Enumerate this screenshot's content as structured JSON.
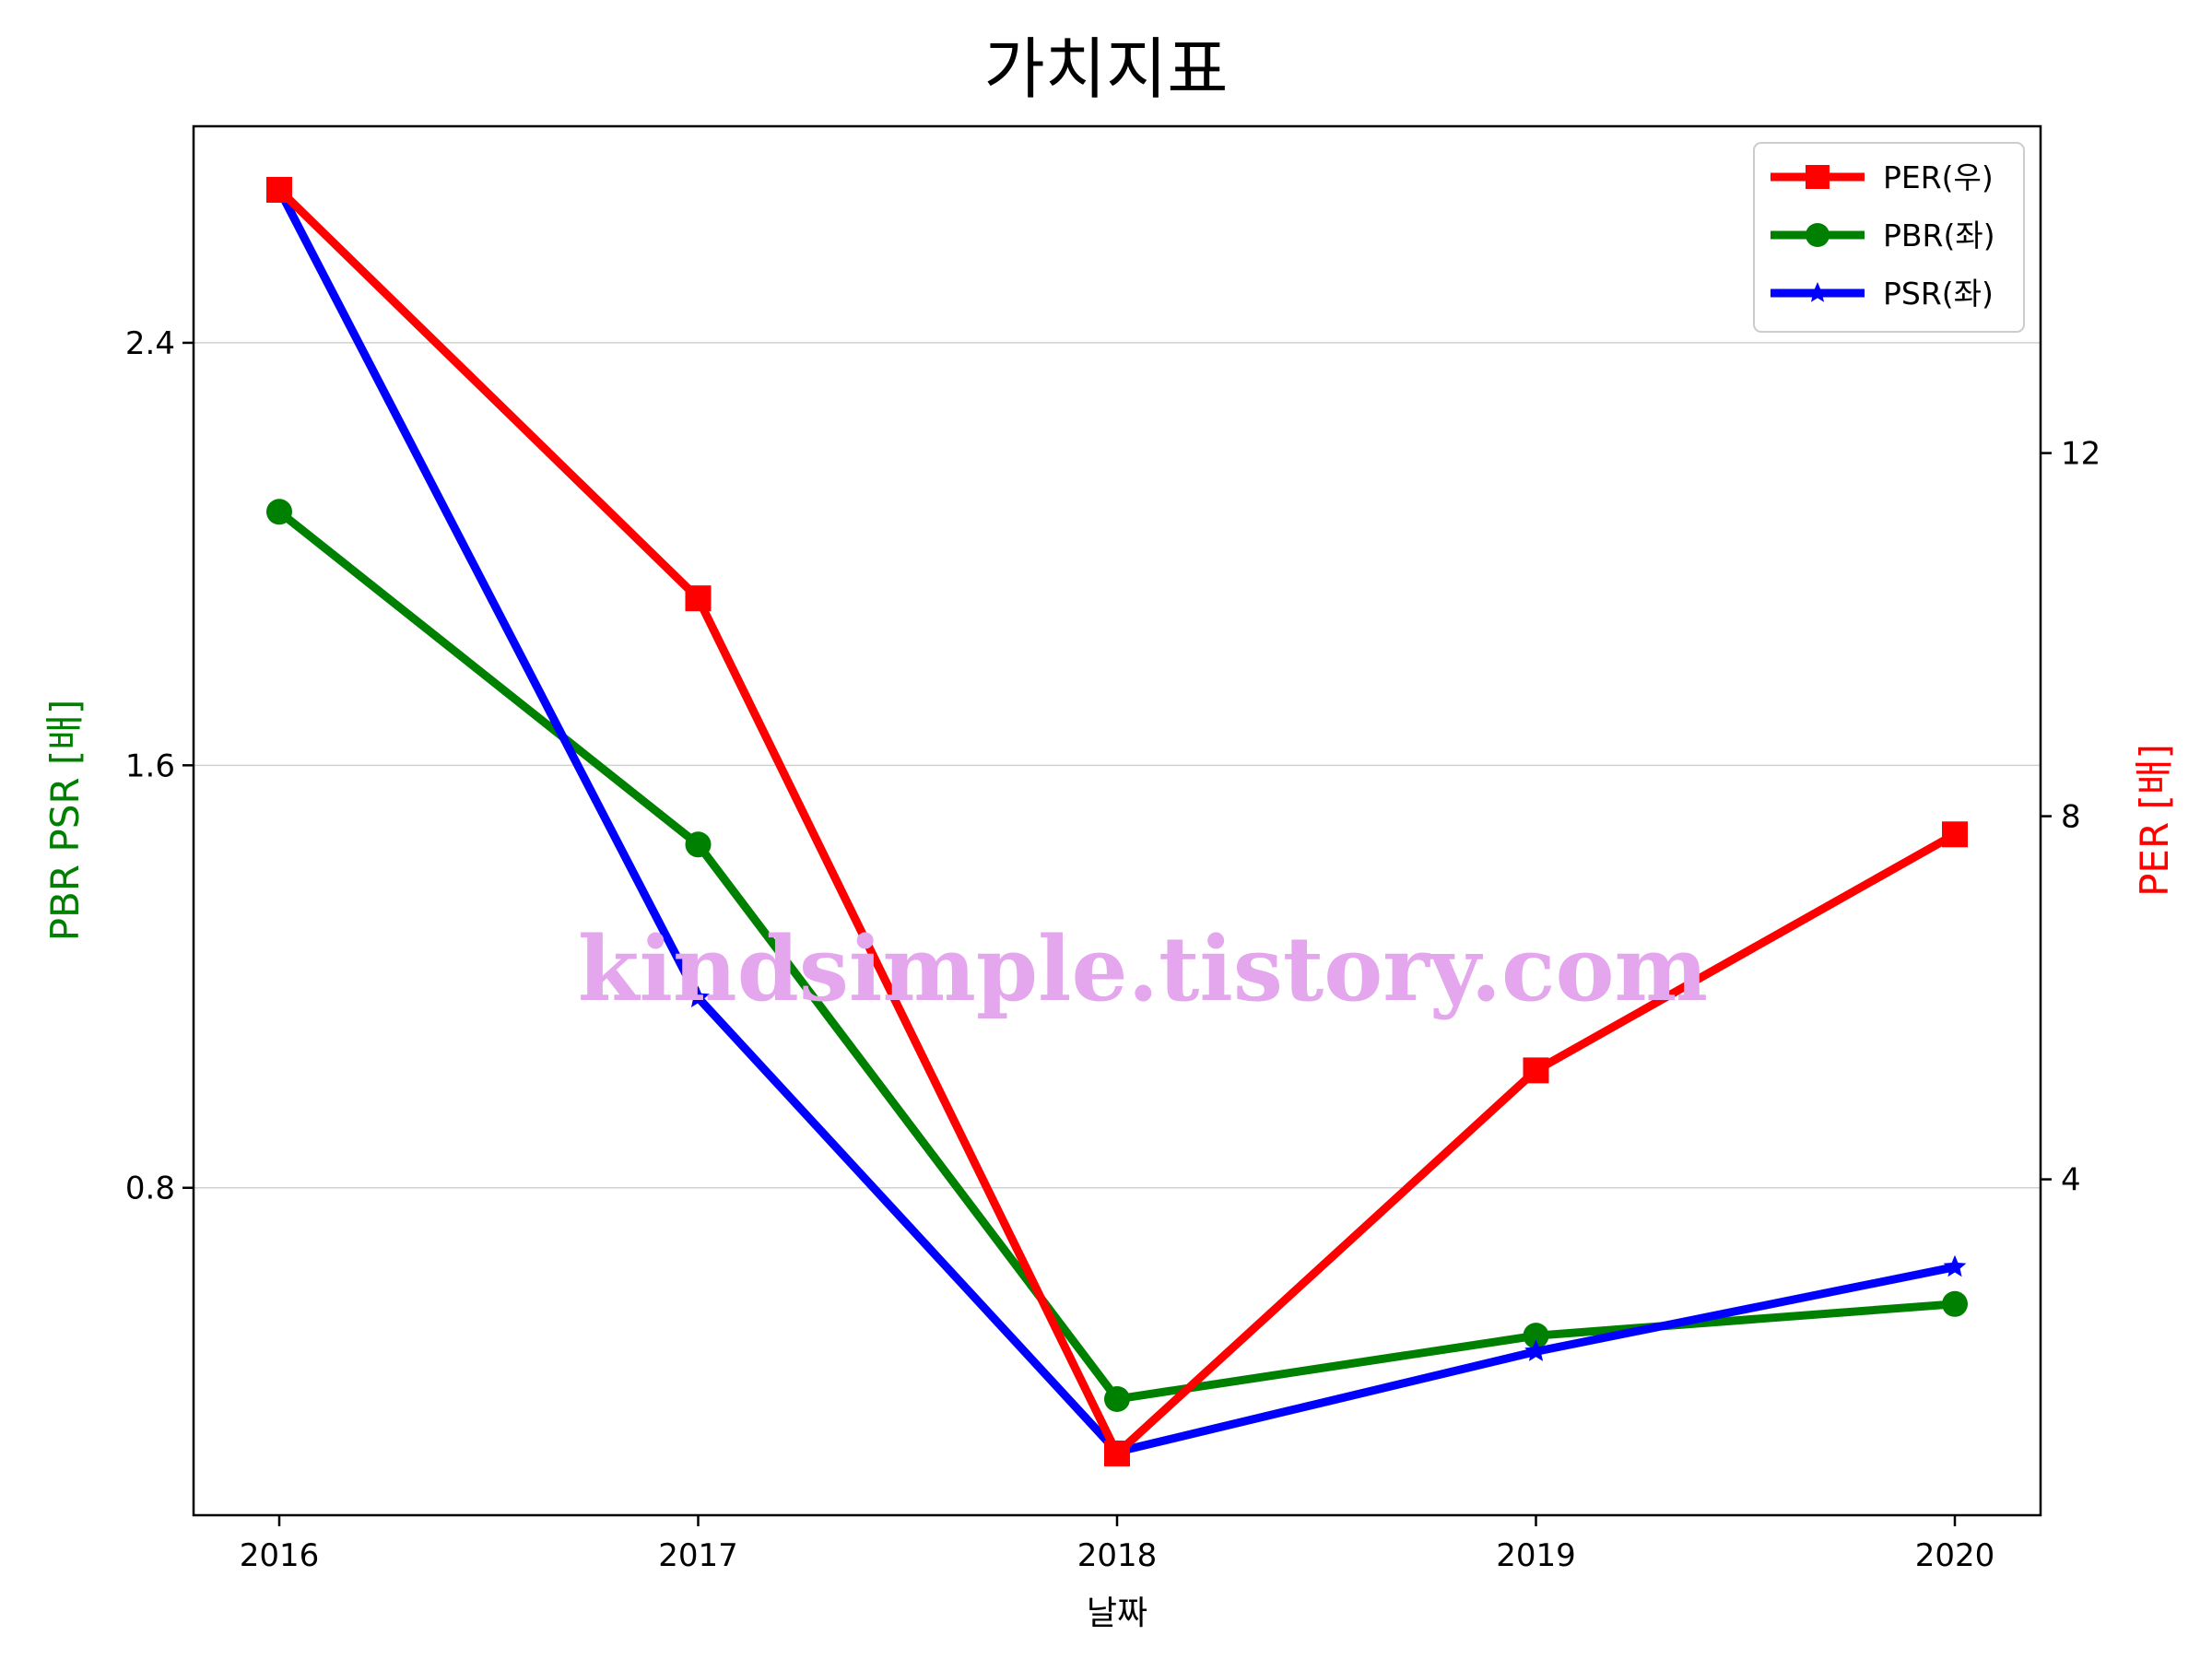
{
  "chart_data": {
    "type": "line",
    "title": "가치지표",
    "xlabel": "날짜",
    "ylabel_left": "PBR PSR [배]",
    "ylabel_right": "PER [배]",
    "categories": [
      "2016",
      "2017",
      "2018",
      "2019",
      "2020"
    ],
    "left_axis": {
      "ylim": [
        0.18,
        2.81
      ],
      "ticks": [
        0.8,
        1.6,
        2.4
      ],
      "tick_labels": [
        "0.8",
        "1.6",
        "2.4"
      ],
      "color": "#008000"
    },
    "right_axis": {
      "ylim": [
        0.3,
        15.6
      ],
      "ticks": [
        4,
        8,
        12
      ],
      "tick_labels": [
        "4",
        "8",
        "12"
      ],
      "color": "#ff0000"
    },
    "grid": "horizontal-left",
    "legend_position": "top-right",
    "series": [
      {
        "name": "PER(우)",
        "axis": "right",
        "color": "#ff0000",
        "marker": "square",
        "values": [
          14.9,
          10.4,
          0.98,
          5.2,
          7.8
        ]
      },
      {
        "name": "PBR(좌)",
        "axis": "left",
        "color": "#008000",
        "marker": "circle",
        "values": [
          2.08,
          1.45,
          0.4,
          0.52,
          0.58
        ]
      },
      {
        "name": "PSR(좌)",
        "axis": "left",
        "color": "#0000ff",
        "marker": "star",
        "values": [
          2.69,
          1.16,
          0.3,
          0.49,
          0.65
        ]
      }
    ],
    "watermark": "kindsimple.tistory.com"
  }
}
